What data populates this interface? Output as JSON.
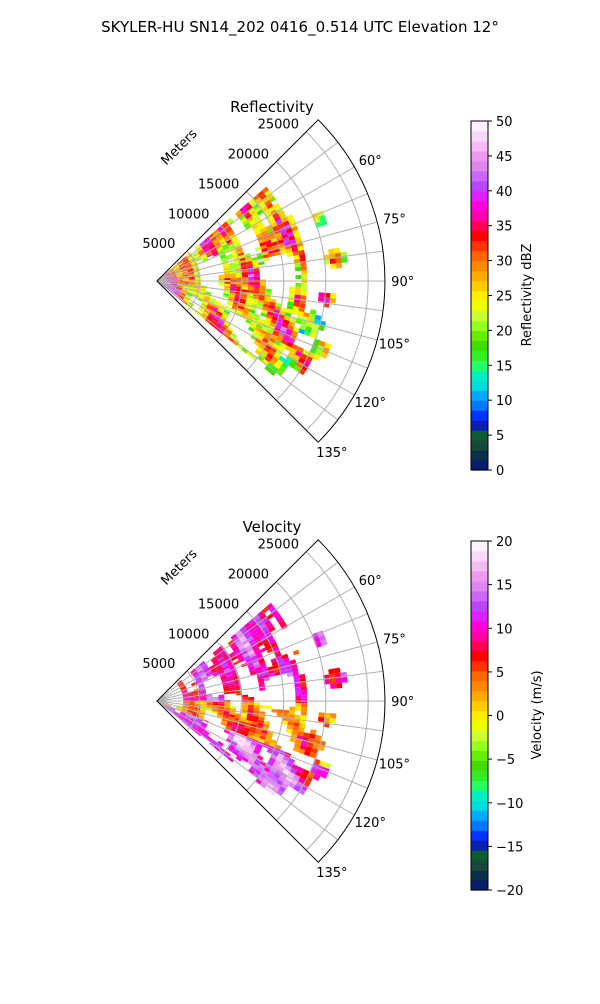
{
  "figure": {
    "title": "SKYLER-HU  SN14_202  0416_0.514 UTC Elevation 12°"
  },
  "chart_data": [
    {
      "type": "heatmap",
      "subtype": "polar-sector-ppi",
      "title": "Reflectivity",
      "range_label": "Meters",
      "range_ticks": [
        "5000",
        "10000",
        "15000",
        "20000",
        "25000"
      ],
      "range_values": [
        5000,
        10000,
        15000,
        20000,
        25000
      ],
      "rmax": 27000,
      "theta_range_deg": [
        45,
        135
      ],
      "theta_ticks": [
        "60°",
        "75°",
        "90°",
        "105°",
        "120°",
        "135°"
      ],
      "theta_values": [
        60,
        75,
        90,
        105,
        120,
        135
      ],
      "grid": true,
      "colorbar": {
        "label": "Reflectivity dBZ",
        "min": 0,
        "max": 50,
        "ticks": [
          "0",
          "5",
          "10",
          "15",
          "20",
          "25",
          "30",
          "35",
          "40",
          "45",
          "50"
        ],
        "tick_values": [
          0,
          5,
          10,
          15,
          20,
          25,
          30,
          35,
          40,
          45,
          50
        ],
        "colors": [
          "#071e6b",
          "#0a2f4a",
          "#17483a",
          "#0f5c30",
          "#0b1fb0",
          "#0033ff",
          "#0077ff",
          "#00aaff",
          "#00dddd",
          "#00f0c0",
          "#22ff66",
          "#33ee22",
          "#44dd00",
          "#66ee00",
          "#99ff22",
          "#ccff33",
          "#eeff00",
          "#ffee00",
          "#ffcc00",
          "#ffaa00",
          "#ff8800",
          "#ff6600",
          "#ff3300",
          "#ff0000",
          "#ff0055",
          "#ff00aa",
          "#ff00dd",
          "#dd22ff",
          "#bb44ff",
          "#cc66ff",
          "#dd88ee",
          "#ee99ee",
          "#f5bbf5",
          "#fbd8fb",
          "#fff0ff"
        ]
      },
      "field_samples_dbz": [
        22,
        35,
        18,
        27,
        40,
        30,
        20,
        25,
        33,
        19
      ]
    },
    {
      "type": "heatmap",
      "subtype": "polar-sector-ppi",
      "title": "Velocity",
      "range_label": "Meters",
      "range_ticks": [
        "5000",
        "10000",
        "15000",
        "20000",
        "25000"
      ],
      "range_values": [
        5000,
        10000,
        15000,
        20000,
        25000
      ],
      "rmax": 27000,
      "theta_range_deg": [
        45,
        135
      ],
      "theta_ticks": [
        "60°",
        "75°",
        "90°",
        "105°",
        "120°",
        "135°"
      ],
      "theta_values": [
        60,
        75,
        90,
        105,
        120,
        135
      ],
      "grid": true,
      "colorbar": {
        "label": "Velocity (m/s)",
        "min": -20,
        "max": 20,
        "ticks": [
          "−20",
          "−15",
          "−10",
          "−5",
          "0",
          "5",
          "10",
          "15",
          "20"
        ],
        "tick_values": [
          -20,
          -15,
          -10,
          -5,
          0,
          5,
          10,
          15,
          20
        ],
        "colors": [
          "#071e6b",
          "#0a2f4a",
          "#17483a",
          "#0f5c30",
          "#0b1fb0",
          "#0033ff",
          "#0077ff",
          "#00aaff",
          "#00dddd",
          "#00f0c0",
          "#22ff66",
          "#33ee22",
          "#44dd00",
          "#66ee00",
          "#99ff22",
          "#ccff33",
          "#eeff00",
          "#ffee00",
          "#ffcc00",
          "#ffaa00",
          "#ff8800",
          "#ff6600",
          "#ff3300",
          "#ff0000",
          "#ff0055",
          "#ff00aa",
          "#ff00dd",
          "#dd22ff",
          "#bb44ff",
          "#cc66ff",
          "#dd88ee",
          "#ee99ee",
          "#f5bbf5",
          "#fbd8fb",
          "#fff0ff"
        ]
      },
      "field_samples_ms": [
        3,
        10,
        -2,
        8,
        15,
        0,
        12,
        -8,
        5,
        18
      ]
    }
  ]
}
